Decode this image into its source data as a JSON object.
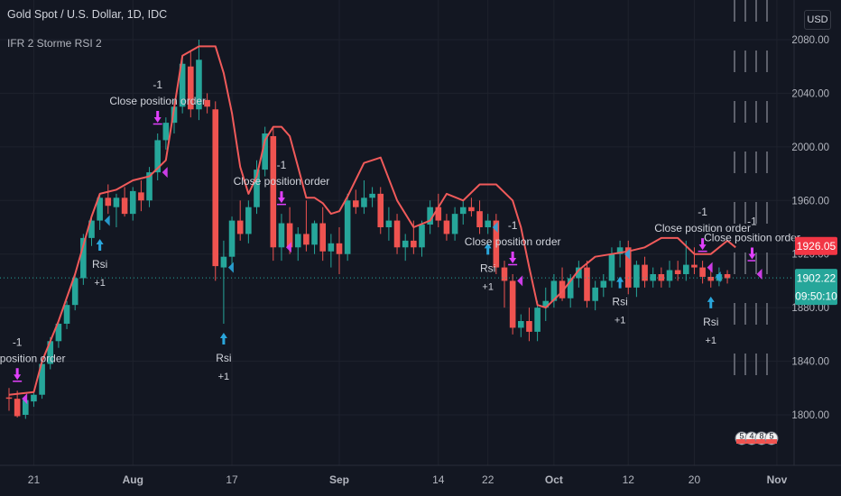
{
  "header": {
    "title": "Gold Spot / U.S. Dollar, 1D, IDC",
    "indicator": "IFR 2 Storme RSI 2",
    "currency": "USD"
  },
  "colors": {
    "up": "#26a69a",
    "down": "#ef5350",
    "line": "#f05a5a",
    "buy_marker": "#2aa6dc",
    "sell_marker": "#e040fb",
    "price_tag_red": "#f23645",
    "price_tag_green": "#26a69a"
  },
  "chart_data": {
    "type": "candlestick",
    "x_labels": [
      "21",
      "Aug",
      "17",
      "Sep",
      "14",
      "22",
      "Oct",
      "12",
      "20",
      "Nov"
    ],
    "y_ticks": [
      1800,
      1840,
      1880,
      1920,
      1960,
      2000,
      2040,
      2080
    ],
    "y_range": [
      1785,
      2100
    ],
    "last_price": "1902.22",
    "countdown": "09:50:10",
    "line_value_label": "1926.05",
    "candles": [
      {
        "o": 1813,
        "h": 1820,
        "l": 1803,
        "c": 1812
      },
      {
        "o": 1812,
        "h": 1818,
        "l": 1798,
        "c": 1799
      },
      {
        "o": 1800,
        "h": 1813,
        "l": 1797,
        "c": 1811
      },
      {
        "o": 1810,
        "h": 1818,
        "l": 1806,
        "c": 1815
      },
      {
        "o": 1815,
        "h": 1840,
        "l": 1812,
        "c": 1838
      },
      {
        "o": 1838,
        "h": 1858,
        "l": 1834,
        "c": 1855
      },
      {
        "o": 1855,
        "h": 1870,
        "l": 1850,
        "c": 1868
      },
      {
        "o": 1868,
        "h": 1885,
        "l": 1864,
        "c": 1882
      },
      {
        "o": 1882,
        "h": 1905,
        "l": 1878,
        "c": 1902
      },
      {
        "o": 1902,
        "h": 1935,
        "l": 1897,
        "c": 1932
      },
      {
        "o": 1932,
        "h": 1948,
        "l": 1926,
        "c": 1945
      },
      {
        "o": 1945,
        "h": 1965,
        "l": 1938,
        "c": 1962
      },
      {
        "o": 1962,
        "h": 1972,
        "l": 1950,
        "c": 1956
      },
      {
        "o": 1955,
        "h": 1965,
        "l": 1940,
        "c": 1962
      },
      {
        "o": 1962,
        "h": 1970,
        "l": 1948,
        "c": 1950
      },
      {
        "o": 1950,
        "h": 1970,
        "l": 1945,
        "c": 1967
      },
      {
        "o": 1966,
        "h": 1975,
        "l": 1952,
        "c": 1960
      },
      {
        "o": 1960,
        "h": 1985,
        "l": 1955,
        "c": 1981
      },
      {
        "o": 1981,
        "h": 2010,
        "l": 1975,
        "c": 2005
      },
      {
        "o": 2005,
        "h": 2022,
        "l": 1998,
        "c": 2018
      },
      {
        "o": 2018,
        "h": 2035,
        "l": 2010,
        "c": 2030
      },
      {
        "o": 2030,
        "h": 2068,
        "l": 2025,
        "c": 2062
      },
      {
        "o": 2060,
        "h": 2072,
        "l": 2022,
        "c": 2028
      },
      {
        "o": 2028,
        "h": 2080,
        "l": 2020,
        "c": 2065
      },
      {
        "o": 2035,
        "h": 2040,
        "l": 2025,
        "c": 2030
      },
      {
        "o": 2028,
        "h": 2034,
        "l": 1900,
        "c": 1911
      },
      {
        "o": 1910,
        "h": 1930,
        "l": 1868,
        "c": 1918
      },
      {
        "o": 1918,
        "h": 1948,
        "l": 1910,
        "c": 1945
      },
      {
        "o": 1945,
        "h": 1960,
        "l": 1930,
        "c": 1935
      },
      {
        "o": 1935,
        "h": 1960,
        "l": 1928,
        "c": 1955
      },
      {
        "o": 1955,
        "h": 1990,
        "l": 1950,
        "c": 1983
      },
      {
        "o": 1983,
        "h": 2015,
        "l": 1978,
        "c": 2010
      },
      {
        "o": 2008,
        "h": 2015,
        "l": 1915,
        "c": 1925
      },
      {
        "o": 1925,
        "h": 1950,
        "l": 1915,
        "c": 1943
      },
      {
        "o": 1943,
        "h": 1955,
        "l": 1920,
        "c": 1925
      },
      {
        "o": 1925,
        "h": 1940,
        "l": 1915,
        "c": 1935
      },
      {
        "o": 1935,
        "h": 1960,
        "l": 1922,
        "c": 1927
      },
      {
        "o": 1927,
        "h": 1945,
        "l": 1920,
        "c": 1943
      },
      {
        "o": 1943,
        "h": 1955,
        "l": 1915,
        "c": 1922
      },
      {
        "o": 1922,
        "h": 1935,
        "l": 1910,
        "c": 1928
      },
      {
        "o": 1928,
        "h": 1940,
        "l": 1905,
        "c": 1920
      },
      {
        "o": 1920,
        "h": 1965,
        "l": 1915,
        "c": 1960
      },
      {
        "o": 1960,
        "h": 1968,
        "l": 1950,
        "c": 1955
      },
      {
        "o": 1955,
        "h": 1975,
        "l": 1950,
        "c": 1962
      },
      {
        "o": 1962,
        "h": 1970,
        "l": 1955,
        "c": 1965
      },
      {
        "o": 1965,
        "h": 1970,
        "l": 1935,
        "c": 1940
      },
      {
        "o": 1940,
        "h": 1955,
        "l": 1930,
        "c": 1945
      },
      {
        "o": 1945,
        "h": 1950,
        "l": 1920,
        "c": 1925
      },
      {
        "o": 1925,
        "h": 1935,
        "l": 1915,
        "c": 1930
      },
      {
        "o": 1930,
        "h": 1945,
        "l": 1920,
        "c": 1925
      },
      {
        "o": 1925,
        "h": 1945,
        "l": 1918,
        "c": 1942
      },
      {
        "o": 1942,
        "h": 1960,
        "l": 1935,
        "c": 1955
      },
      {
        "o": 1955,
        "h": 1965,
        "l": 1940,
        "c": 1945
      },
      {
        "o": 1945,
        "h": 1950,
        "l": 1930,
        "c": 1935
      },
      {
        "o": 1935,
        "h": 1955,
        "l": 1930,
        "c": 1950
      },
      {
        "o": 1950,
        "h": 1960,
        "l": 1942,
        "c": 1955
      },
      {
        "o": 1955,
        "h": 1962,
        "l": 1948,
        "c": 1952
      },
      {
        "o": 1952,
        "h": 1960,
        "l": 1935,
        "c": 1940
      },
      {
        "o": 1940,
        "h": 1950,
        "l": 1935,
        "c": 1945
      },
      {
        "o": 1945,
        "h": 1950,
        "l": 1905,
        "c": 1910
      },
      {
        "o": 1910,
        "h": 1915,
        "l": 1880,
        "c": 1900
      },
      {
        "o": 1900,
        "h": 1905,
        "l": 1860,
        "c": 1865
      },
      {
        "o": 1865,
        "h": 1875,
        "l": 1858,
        "c": 1870
      },
      {
        "o": 1870,
        "h": 1880,
        "l": 1855,
        "c": 1862
      },
      {
        "o": 1862,
        "h": 1885,
        "l": 1855,
        "c": 1880
      },
      {
        "o": 1880,
        "h": 1895,
        "l": 1870,
        "c": 1885
      },
      {
        "o": 1885,
        "h": 1905,
        "l": 1880,
        "c": 1900
      },
      {
        "o": 1900,
        "h": 1910,
        "l": 1885,
        "c": 1887
      },
      {
        "o": 1887,
        "h": 1905,
        "l": 1880,
        "c": 1902
      },
      {
        "o": 1902,
        "h": 1915,
        "l": 1895,
        "c": 1910
      },
      {
        "o": 1910,
        "h": 1915,
        "l": 1880,
        "c": 1885
      },
      {
        "o": 1885,
        "h": 1900,
        "l": 1878,
        "c": 1895
      },
      {
        "o": 1895,
        "h": 1905,
        "l": 1888,
        "c": 1900
      },
      {
        "o": 1900,
        "h": 1925,
        "l": 1895,
        "c": 1920
      },
      {
        "o": 1920,
        "h": 1930,
        "l": 1910,
        "c": 1925
      },
      {
        "o": 1925,
        "h": 1930,
        "l": 1890,
        "c": 1895
      },
      {
        "o": 1895,
        "h": 1915,
        "l": 1888,
        "c": 1912
      },
      {
        "o": 1912,
        "h": 1918,
        "l": 1895,
        "c": 1900
      },
      {
        "o": 1900,
        "h": 1910,
        "l": 1895,
        "c": 1905
      },
      {
        "o": 1905,
        "h": 1910,
        "l": 1895,
        "c": 1900
      },
      {
        "o": 1900,
        "h": 1915,
        "l": 1895,
        "c": 1908
      },
      {
        "o": 1908,
        "h": 1915,
        "l": 1900,
        "c": 1905
      },
      {
        "o": 1905,
        "h": 1930,
        "l": 1900,
        "c": 1912
      },
      {
        "o": 1912,
        "h": 1925,
        "l": 1905,
        "c": 1910
      },
      {
        "o": 1910,
        "h": 1915,
        "l": 1898,
        "c": 1903
      },
      {
        "o": 1903,
        "h": 1908,
        "l": 1895,
        "c": 1900
      },
      {
        "o": 1900,
        "h": 1910,
        "l": 1896,
        "c": 1905
      },
      {
        "o": 1905,
        "h": 1908,
        "l": 1898,
        "c": 1902
      }
    ],
    "line_points": [
      {
        "i": 0,
        "v": 1815
      },
      {
        "i": 3,
        "v": 1817
      },
      {
        "i": 4,
        "v": 1840
      },
      {
        "i": 6,
        "v": 1870
      },
      {
        "i": 8,
        "v": 1905
      },
      {
        "i": 10,
        "v": 1948
      },
      {
        "i": 11,
        "v": 1965
      },
      {
        "i": 13,
        "v": 1968
      },
      {
        "i": 15,
        "v": 1975
      },
      {
        "i": 17,
        "v": 1978
      },
      {
        "i": 19,
        "v": 1990
      },
      {
        "i": 21,
        "v": 2068
      },
      {
        "i": 23,
        "v": 2075
      },
      {
        "i": 25,
        "v": 2075
      },
      {
        "i": 26,
        "v": 2055
      },
      {
        "i": 27,
        "v": 2025
      },
      {
        "i": 28,
        "v": 1985
      },
      {
        "i": 29,
        "v": 1965
      },
      {
        "i": 30,
        "v": 1978
      },
      {
        "i": 31,
        "v": 2005
      },
      {
        "i": 32,
        "v": 2015
      },
      {
        "i": 33,
        "v": 2015
      },
      {
        "i": 34,
        "v": 2008
      },
      {
        "i": 35,
        "v": 1985
      },
      {
        "i": 36,
        "v": 1962
      },
      {
        "i": 37,
        "v": 1962
      },
      {
        "i": 38,
        "v": 1958
      },
      {
        "i": 39,
        "v": 1950
      },
      {
        "i": 40,
        "v": 1952
      },
      {
        "i": 41,
        "v": 1963
      },
      {
        "i": 43,
        "v": 1988
      },
      {
        "i": 45,
        "v": 1992
      },
      {
        "i": 47,
        "v": 1960
      },
      {
        "i": 49,
        "v": 1940
      },
      {
        "i": 51,
        "v": 1945
      },
      {
        "i": 53,
        "v": 1965
      },
      {
        "i": 55,
        "v": 1960
      },
      {
        "i": 57,
        "v": 1972
      },
      {
        "i": 59,
        "v": 1972
      },
      {
        "i": 61,
        "v": 1960
      },
      {
        "i": 62,
        "v": 1940
      },
      {
        "i": 63,
        "v": 1910
      },
      {
        "i": 64,
        "v": 1882
      },
      {
        "i": 65,
        "v": 1880
      },
      {
        "i": 67,
        "v": 1892
      },
      {
        "i": 69,
        "v": 1908
      },
      {
        "i": 71,
        "v": 1918
      },
      {
        "i": 73,
        "v": 1920
      },
      {
        "i": 75,
        "v": 1922
      },
      {
        "i": 77,
        "v": 1925
      },
      {
        "i": 79,
        "v": 1932
      },
      {
        "i": 81,
        "v": 1932
      },
      {
        "i": 83,
        "v": 1920
      },
      {
        "i": 85,
        "v": 1920
      },
      {
        "i": 87,
        "v": 1930
      },
      {
        "i": 88,
        "v": 1925
      }
    ],
    "buy_signals": [
      {
        "i": 11,
        "label": [
          "Rsi",
          "+1"
        ]
      },
      {
        "i": 26,
        "label": [
          "Rsi",
          "+1"
        ]
      },
      {
        "i": 58,
        "label": [
          "Rsi",
          "+1"
        ]
      },
      {
        "i": 74,
        "label": [
          "Rsi",
          "+1"
        ]
      },
      {
        "i": 85,
        "label": [
          "Rsi",
          "+1"
        ]
      }
    ],
    "sell_signals": [
      {
        "i": 1,
        "label": [
          "-1",
          "Close position order"
        ]
      },
      {
        "i": 18,
        "label": [
          "-1",
          "Close position order"
        ]
      },
      {
        "i": 33,
        "label": [
          "-1",
          "Close position order"
        ]
      },
      {
        "i": 61,
        "label": [
          "-1",
          "Close position order"
        ]
      },
      {
        "i": 84,
        "label": [
          "-1",
          "Close position order"
        ]
      },
      {
        "i": 90,
        "label": [
          "-1",
          "Close position order"
        ]
      }
    ],
    "events_badge": [
      "5",
      "4",
      "8",
      "5"
    ]
  }
}
